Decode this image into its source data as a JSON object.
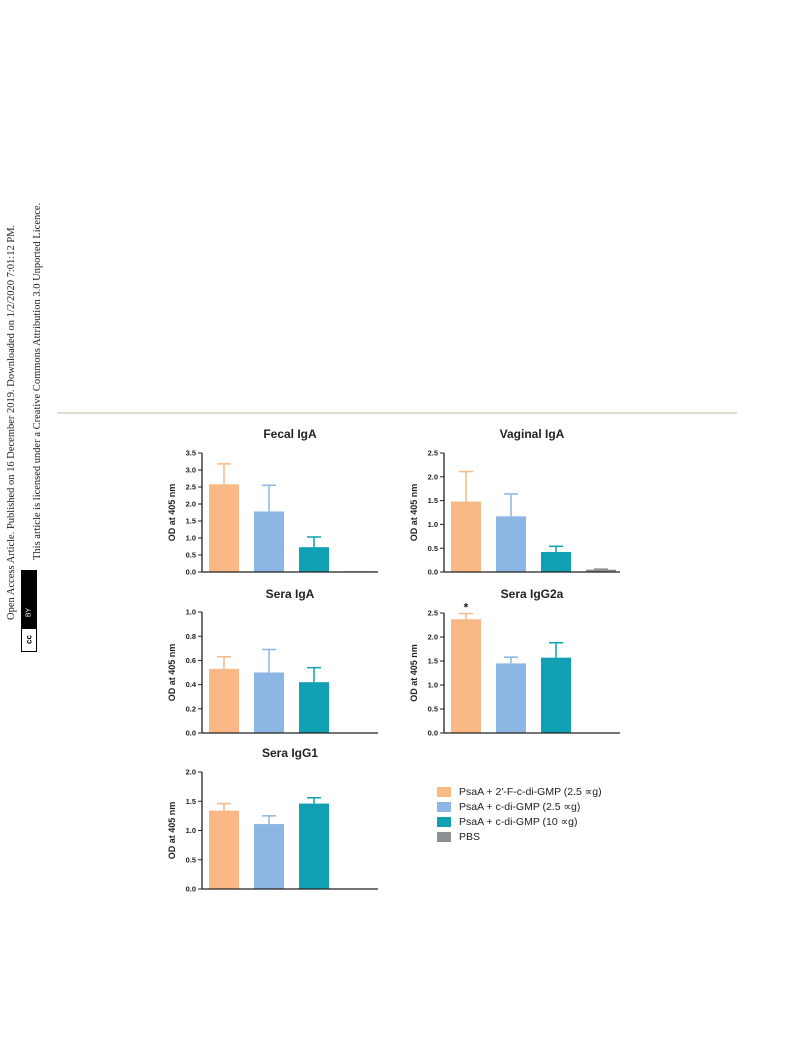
{
  "sidebar": {
    "line1": "Open Access Article. Published on 16 December 2019. Downloaded on 1/2/2020 7:01:12 PM.",
    "line2": "This article is licensed under a Creative Commons Attribution 3.0 Unported Licence.",
    "badge_cc": "cc",
    "badge_by": "BY"
  },
  "legend": {
    "items": [
      {
        "label": "PsaA + 2'-F-c-di-GMP (2.5 ∝g)",
        "color": "#f9b885"
      },
      {
        "label": "PsaA + c-di-GMP (2.5 ∝g)",
        "color": "#8cb6e3"
      },
      {
        "label": "PsaA + c-di-GMP (10 ∝g)",
        "color": "#119fb3"
      },
      {
        "label": "PBS",
        "color": "#8b8f93"
      }
    ]
  },
  "chart_data": [
    {
      "type": "bar",
      "title": "Fecal IgA",
      "ylabel": "OD at 405 nm",
      "ylim": [
        0,
        3.5
      ],
      "yticks": [
        "0.0",
        "0.5",
        "1.0",
        "1.5",
        "2.0",
        "2.5",
        "3.0",
        "3.5"
      ],
      "categories": [
        "PsaA + 2'-F-c-di-GMP (2.5 ∝g)",
        "PsaA + c-di-GMP (2.5 ∝g)",
        "PsaA + c-di-GMP (10 ∝g)",
        "PBS"
      ],
      "values": [
        2.58,
        1.78,
        0.73,
        0.02
      ],
      "errors": [
        0.6,
        0.77,
        0.3,
        0.0
      ]
    },
    {
      "type": "bar",
      "title": "Vaginal IgA",
      "ylabel": "OD at 405 nm",
      "ylim": [
        0,
        2.5
      ],
      "yticks": [
        "0.0",
        "0.5",
        "1.0",
        "1.5",
        "2.0",
        "2.5"
      ],
      "categories": [
        "PsaA + 2'-F-c-di-GMP (2.5 ∝g)",
        "PsaA + c-di-GMP (2.5 ∝g)",
        "PsaA + c-di-GMP (10 ∝g)",
        "PBS"
      ],
      "values": [
        1.48,
        1.17,
        0.42,
        0.05
      ],
      "errors": [
        0.63,
        0.47,
        0.12,
        0.01
      ]
    },
    {
      "type": "bar",
      "title": "Sera IgA",
      "ylabel": "OD at 405 nm",
      "ylim": [
        0,
        1.0
      ],
      "yticks": [
        "0.0",
        "0.2",
        "0.4",
        "0.6",
        "0.8",
        "1.0"
      ],
      "categories": [
        "PsaA + 2'-F-c-di-GMP (2.5 ∝g)",
        "PsaA + c-di-GMP (2.5 ∝g)",
        "PsaA + c-di-GMP (10 ∝g)",
        "PBS"
      ],
      "values": [
        0.53,
        0.5,
        0.42,
        0.0
      ],
      "errors": [
        0.1,
        0.19,
        0.12,
        0.0
      ]
    },
    {
      "type": "bar",
      "title": "Sera IgG2a",
      "ylabel": "OD at 405 nm",
      "ylim": [
        0,
        2.5
      ],
      "yticks": [
        "0.0",
        "0.5",
        "1.0",
        "1.5",
        "2.0",
        "2.5"
      ],
      "categories": [
        "PsaA + 2'-F-c-di-GMP (2.5 ∝g)",
        "PsaA + c-di-GMP (2.5 ∝g)",
        "PsaA + c-di-GMP (10 ∝g)",
        "PBS"
      ],
      "values": [
        2.37,
        1.45,
        1.57,
        0.0
      ],
      "errors": [
        0.12,
        0.13,
        0.31,
        0.0
      ],
      "annotations": [
        "*",
        "",
        "",
        ""
      ]
    },
    {
      "type": "bar",
      "title": "Sera IgG1",
      "ylabel": "OD at 405 nm",
      "ylim": [
        0,
        2.0
      ],
      "yticks": [
        "0.0",
        "0.5",
        "1.0",
        "1.5",
        "2.0"
      ],
      "categories": [
        "PsaA + 2'-F-c-di-GMP (2.5 ∝g)",
        "PsaA + c-di-GMP (2.5 ∝g)",
        "PsaA + c-di-GMP (10 ∝g)"
      ],
      "values": [
        1.34,
        1.11,
        1.46
      ],
      "errors": [
        0.12,
        0.14,
        0.1
      ]
    }
  ]
}
